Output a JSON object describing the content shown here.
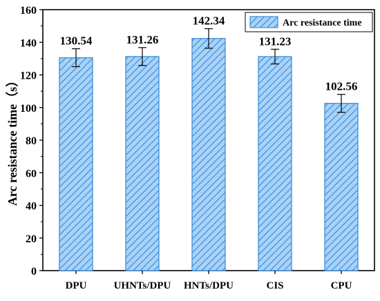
{
  "chart_data": {
    "type": "bar",
    "title": "",
    "xlabel": "",
    "ylabel": "Arc resistance time（s）",
    "categories": [
      "DPU",
      "UHNTs/DPU",
      "HNTs/DPU",
      "CIS",
      "CPU"
    ],
    "series": [
      {
        "name": "Arc resistance time",
        "values": [
          130.54,
          131.26,
          142.34,
          131.23,
          102.56
        ],
        "errors": [
          5.5,
          5.5,
          6.0,
          4.5,
          5.5
        ],
        "fill_color": "#a9d2f6",
        "hatch_color": "#2f88e0",
        "edge_color": "#3b8fd9"
      }
    ],
    "data_labels": [
      "130.54",
      "131.26",
      "142.34",
      "131.23",
      "102.56"
    ],
    "ylim": [
      0,
      160
    ],
    "yticks": [
      "0",
      "20",
      "40",
      "60",
      "80",
      "100",
      "120",
      "140",
      "160"
    ],
    "grid": false,
    "legend_position": "top-right"
  }
}
